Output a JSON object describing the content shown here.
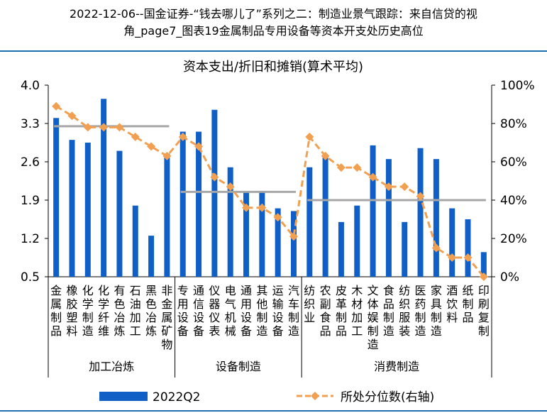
{
  "header": {
    "line1": "2022-12-06--国金证券-“钱去哪儿了”系列之二：制造业景气跟踪：来自信贷的视",
    "line2": "角_page7_图表19金属制品专用设备等资本开支处历史高位"
  },
  "chart_data": {
    "type": "bar+line",
    "title": "资本支出/折旧和摊销(算术平均)",
    "ylim_left": [
      0.5,
      4.0
    ],
    "yticks_left": [
      "4.0",
      "3.3",
      "2.6",
      "1.9",
      "1.2",
      "0.5"
    ],
    "ylim_right": [
      0,
      100
    ],
    "yticks_right": [
      "100%",
      "80%",
      "60%",
      "40%",
      "20%",
      "0%"
    ],
    "categories": [
      "金属制品",
      "橡胶塑料",
      "化学制造",
      "化学纤维",
      "有色冶炼",
      "石油加工",
      "黑色冶炼",
      "非金属矿物",
      "专用设备",
      "通信设备",
      "仪器仪表",
      "电气机械",
      "通用设备",
      "其他制造",
      "运输设备",
      "汽车制造",
      "纺织业",
      "农副食品",
      "皮革制品",
      "木材加工",
      "文体娱制造",
      "食品制造",
      "纺织服装",
      "医药制造",
      "家具制造",
      "酒饮料",
      "纸制品",
      "印刷复制"
    ],
    "groups": [
      {
        "label": "加工冶炼",
        "start": 0,
        "end": 7,
        "mean": 3.25
      },
      {
        "label": "设备制造",
        "start": 8,
        "end": 15,
        "mean": 2.05
      },
      {
        "label": "消费制造",
        "start": 16,
        "end": 27,
        "mean": 1.9
      }
    ],
    "series": [
      {
        "name": "2022Q2",
        "type": "bar",
        "color": "#0f5fc7",
        "values": [
          3.4,
          3.0,
          2.95,
          3.75,
          2.8,
          1.8,
          1.25,
          2.75,
          3.15,
          3.15,
          3.55,
          2.5,
          2.05,
          2.05,
          1.75,
          1.7,
          2.5,
          2.7,
          1.5,
          1.8,
          2.9,
          2.65,
          1.5,
          2.85,
          2.65,
          1.75,
          1.55,
          0.95
        ]
      },
      {
        "name": "所处分位数(右轴)",
        "type": "line",
        "color": "#f0a050",
        "values": [
          89,
          84,
          78,
          78,
          78,
          73,
          68,
          63,
          73,
          68,
          52,
          47,
          36,
          36,
          31,
          21,
          73,
          63,
          57,
          57,
          52,
          47,
          47,
          42,
          15,
          10,
          10,
          0
        ]
      }
    ],
    "legend": "bottom",
    "grid": false
  }
}
